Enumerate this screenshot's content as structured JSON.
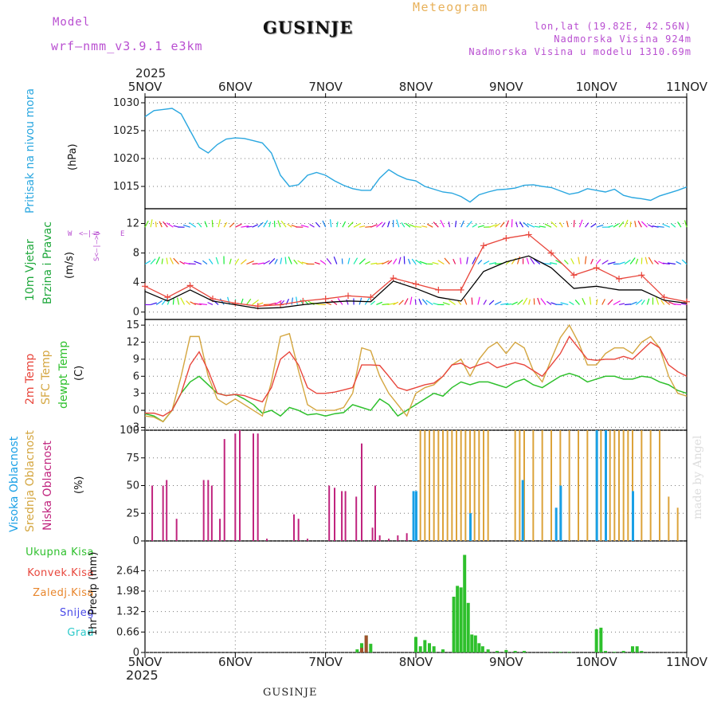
{
  "header": {
    "model_label": "Model",
    "model_version": "wrf—nmm_v3.9.1  e3km",
    "station": "GUSINJE",
    "meteogram": "Meteogram",
    "lonlat": "lon,lat (19.82E, 42.56N)",
    "elevation": "Nadmorska Visina 924m",
    "model_elevation": "Nadmorska Visina u modelu 1310.69m"
  },
  "footer": {
    "station": "GUSINJE",
    "made_by": "made by Angel"
  },
  "axis_days": [
    "5NOV",
    "6NOV",
    "7NOV",
    "8NOV",
    "9NOV",
    "10NOV",
    "11NOV"
  ],
  "year": "2025",
  "colors": {
    "pressure": "#2aa7e0",
    "temp2m": "#e8463c",
    "sfctemp": "#d4a640",
    "dewpt": "#2ec02c",
    "high": "#1aa0e6",
    "mid": "#dca33a",
    "low": "#c0247e",
    "precip": "#2ec02c",
    "conv": "#e8463c",
    "wind_label": "#1fa83c",
    "panel_label_purple": "#b94fd1"
  },
  "chart_data": [
    {
      "type": "line",
      "name": "pressure-panel",
      "ylabel_left": "Pritisak na nivou mora",
      "ylabel_unit": "(hPa)",
      "ylim": [
        1011,
        1031
      ],
      "yticks": [
        "1015",
        "1020",
        "1025",
        "1030"
      ],
      "yticks_val": [
        1015,
        1020,
        1025,
        1030
      ],
      "x": [
        0,
        0.1,
        0.2,
        0.3,
        0.4,
        0.5,
        0.6,
        0.7,
        0.8,
        0.9,
        1.0,
        1.1,
        1.2,
        1.3,
        1.4,
        1.5,
        1.6,
        1.7,
        1.8,
        1.9,
        2.0,
        2.1,
        2.2,
        2.3,
        2.4,
        2.5,
        2.6,
        2.7,
        2.8,
        2.9,
        3.0,
        3.1,
        3.2,
        3.3,
        3.4,
        3.5,
        3.6,
        3.7,
        3.8,
        3.9,
        4.0,
        4.1,
        4.2,
        4.3,
        4.4,
        4.5,
        4.6,
        4.7,
        4.8,
        4.9,
        5.0,
        5.1,
        5.2,
        5.3,
        5.4,
        5.5,
        5.6,
        5.7,
        5.8,
        5.9,
        6.0
      ],
      "series": [
        {
          "name": "Pritisak",
          "values": [
            1027.5,
            1028.6,
            1028.8,
            1029,
            1028,
            1025,
            1022,
            1021,
            1022.5,
            1023.5,
            1023.7,
            1023.6,
            1023.2,
            1022.8,
            1021,
            1017,
            1015,
            1015.3,
            1017,
            1017.5,
            1017,
            1016,
            1015.2,
            1014.6,
            1014.3,
            1014.3,
            1016.5,
            1018,
            1017,
            1016.3,
            1016,
            1015,
            1014.5,
            1014,
            1013.8,
            1013.2,
            1012.2,
            1013.5,
            1014,
            1014.4,
            1014.5,
            1014.7,
            1015.2,
            1015.3,
            1015,
            1014.8,
            1014.2,
            1013.6,
            1013.9,
            1014.6,
            1014.3,
            1014,
            1014.5,
            1013.4,
            1013,
            1012.8,
            1012.5,
            1013.3,
            1013.8,
            1014.3,
            1014.9
          ]
        }
      ]
    },
    {
      "type": "line",
      "name": "wind-panel",
      "ylabel_left_1": "10m Vjetar",
      "ylabel_left_2": "Brzina i Pravac",
      "ylabel_unit": "(m/s)",
      "compass_labels": {
        "w": "W",
        "e": "E",
        "n": "N",
        "s": "S",
        "arrow": "<—|—>"
      },
      "ylim": [
        -1,
        14
      ],
      "yticks": [
        "0",
        "4",
        "8",
        "12"
      ],
      "yticks_val": [
        0,
        4,
        8,
        12
      ],
      "arrow_rows": [
        1,
        6.5,
        11.5
      ],
      "x": [
        0,
        0.25,
        0.5,
        0.75,
        1.0,
        1.25,
        1.5,
        1.75,
        2.0,
        2.25,
        2.5,
        2.75,
        3.0,
        3.25,
        3.5,
        3.75,
        4.0,
        4.25,
        4.5,
        4.75,
        5.0,
        5.25,
        5.5,
        5.75,
        6.0
      ],
      "series": [
        {
          "name": "Brzina 10m",
          "values": [
            2.8,
            1.5,
            3.0,
            1.5,
            1.0,
            0.5,
            0.6,
            1.0,
            1.3,
            1.5,
            1.4,
            4.2,
            3.2,
            2.0,
            1.5,
            5.5,
            6.8,
            7.6,
            6.0,
            3.2,
            3.5,
            3.0,
            3.0,
            1.6,
            1.2
          ]
        },
        {
          "name": "Udari",
          "values": [
            3.5,
            2.0,
            3.6,
            1.8,
            1.2,
            0.8,
            1.0,
            1.5,
            1.8,
            2.2,
            2.0,
            4.6,
            3.8,
            3.0,
            3.0,
            9.0,
            10.0,
            10.5,
            8.0,
            5.0,
            6.0,
            4.5,
            5.0,
            2.0,
            1.4
          ]
        }
      ]
    },
    {
      "type": "line",
      "name": "temperature-panel",
      "ylabel_left_1": "2m Temp",
      "ylabel_left_2": "SFC Temp",
      "ylabel_left_3": "dewpt Temp",
      "ylabel_unit": "(C)",
      "ylim": [
        -3.5,
        16
      ],
      "yticks": [
        "-3",
        "0",
        "3",
        "6",
        "9",
        "12",
        "15"
      ],
      "yticks_val": [
        -3,
        0,
        3,
        6,
        9,
        12,
        15
      ],
      "x": [
        0,
        0.1,
        0.2,
        0.3,
        0.4,
        0.5,
        0.6,
        0.7,
        0.8,
        0.9,
        1.0,
        1.1,
        1.2,
        1.3,
        1.4,
        1.5,
        1.6,
        1.7,
        1.8,
        1.9,
        2.0,
        2.1,
        2.2,
        2.3,
        2.4,
        2.5,
        2.6,
        2.7,
        2.8,
        2.9,
        3.0,
        3.1,
        3.2,
        3.3,
        3.4,
        3.5,
        3.6,
        3.7,
        3.8,
        3.9,
        4.0,
        4.1,
        4.2,
        4.3,
        4.4,
        4.5,
        4.6,
        4.7,
        4.8,
        4.9,
        5.0,
        5.1,
        5.2,
        5.3,
        5.4,
        5.5,
        5.6,
        5.7,
        5.8,
        5.9,
        6.0
      ],
      "series": [
        {
          "name": "2m Temp",
          "values": [
            -0.5,
            -0.5,
            -1,
            0,
            3,
            8,
            10.3,
            7,
            3,
            2.6,
            2.8,
            2.6,
            2,
            1.5,
            4,
            9,
            10.3,
            8,
            4,
            3,
            3,
            3.2,
            3.6,
            4,
            8,
            8,
            7.9,
            6,
            4,
            3.5,
            4,
            4.5,
            4.8,
            6,
            8,
            8.3,
            7.4,
            8,
            8.5,
            7.5,
            8,
            8.4,
            8,
            7,
            6,
            8,
            10,
            13,
            11,
            9,
            8.8,
            9,
            9,
            9.5,
            9,
            10.5,
            12,
            11,
            8,
            6.8,
            6
          ]
        },
        {
          "name": "SFC Temp",
          "values": [
            -1,
            -1.2,
            -2,
            0,
            6,
            13,
            13,
            6,
            2,
            1,
            2,
            1,
            0,
            -1,
            5,
            13,
            13.5,
            7,
            1,
            0,
            0,
            0,
            0.5,
            3,
            11,
            10.5,
            6,
            3,
            1,
            -1,
            3,
            4,
            4.5,
            6,
            8,
            9,
            6,
            9,
            11,
            12,
            10,
            12,
            11,
            7,
            5,
            9,
            12.8,
            15,
            12,
            8,
            8,
            10,
            11,
            11,
            10,
            12,
            13,
            11,
            6,
            3,
            2.5
          ]
        },
        {
          "name": "dewpt Temp",
          "values": [
            -0.6,
            -1,
            -2,
            0,
            3,
            5,
            6,
            4.5,
            3,
            2.6,
            2.8,
            2,
            1,
            -0.5,
            0,
            -1,
            0.5,
            0,
            -0.8,
            -0.6,
            -1,
            -0.6,
            -0.4,
            1,
            0.5,
            0,
            2,
            1,
            -1,
            0,
            1,
            2,
            3,
            2.5,
            4,
            5,
            4.5,
            5,
            5,
            4.5,
            4,
            5,
            5.5,
            4.5,
            4,
            5,
            6,
            6.5,
            6,
            5,
            5.5,
            6,
            6,
            5.5,
            5.5,
            6,
            5.8,
            5,
            4.5,
            3.5,
            3
          ]
        }
      ]
    },
    {
      "type": "bar",
      "name": "cloud-panel",
      "ylabel_left_1": "Visoka Oblacnost",
      "ylabel_left_2": "Srednja Oblacnost",
      "ylabel_left_3": "Niska Oblacnost",
      "ylabel_unit": "(%)",
      "ylim": [
        0,
        100
      ],
      "yticks": [
        "0",
        "25",
        "50",
        "75",
        "100"
      ],
      "yticks_val": [
        0,
        25,
        50,
        75,
        100
      ],
      "series": [
        {
          "name": "Niska",
          "x": [
            0.08,
            0.2,
            0.24,
            0.35,
            0.65,
            0.7,
            0.74,
            0.83,
            0.88,
            1.0,
            1.05,
            1.2,
            1.25,
            1.35,
            1.65,
            1.7,
            1.8,
            2.04,
            2.1,
            2.18,
            2.22,
            2.34,
            2.4,
            2.52,
            2.55,
            2.6,
            2.7,
            2.8,
            2.9
          ],
          "values": [
            50,
            50,
            55,
            20,
            55,
            55,
            50,
            20,
            92,
            97,
            100,
            97,
            97,
            2,
            24,
            20,
            2,
            50,
            48,
            45,
            45,
            40,
            88,
            12,
            50,
            5,
            2,
            5,
            7
          ]
        },
        {
          "name": "Srednja",
          "x": [
            3.05,
            3.1,
            3.15,
            3.2,
            3.25,
            3.3,
            3.35,
            3.4,
            3.45,
            3.5,
            3.55,
            3.6,
            3.65,
            3.7,
            3.75,
            3.8,
            4.1,
            4.15,
            4.2,
            4.3,
            4.4,
            4.5,
            4.6,
            4.7,
            4.8,
            4.9,
            5.0,
            5.05,
            5.1,
            5.15,
            5.2,
            5.25,
            5.3,
            5.35,
            5.4,
            5.5,
            5.6,
            5.7,
            5.8,
            5.9
          ],
          "values": [
            100,
            100,
            100,
            100,
            100,
            100,
            100,
            100,
            100,
            100,
            100,
            100,
            100,
            100,
            100,
            100,
            100,
            100,
            100,
            100,
            100,
            100,
            100,
            100,
            100,
            100,
            100,
            100,
            100,
            100,
            100,
            100,
            100,
            100,
            100,
            100,
            100,
            100,
            40,
            30
          ]
        },
        {
          "name": "Visoka",
          "x": [
            2.97,
            3.0,
            3.6,
            4.18,
            4.55,
            4.6,
            5.0,
            5.1,
            5.4
          ],
          "values": [
            45,
            45,
            25,
            55,
            30,
            50,
            100,
            100,
            45
          ]
        }
      ]
    },
    {
      "type": "bar",
      "name": "precip-panel",
      "ylabel_left_1": "Ukupna Kisa",
      "ylabel_left_2": "Konvek.Kisa",
      "ylabel_left_3": "Zaledj.Kisa",
      "ylabel_left_4": "Snijeg",
      "ylabel_left_5": "Grad",
      "ylabel_unit": "1hr Precip (mm)",
      "ylim": [
        0,
        3.6
      ],
      "yticks": [
        "0",
        "0.66",
        "1.32",
        "1.98",
        "2.64"
      ],
      "yticks_val": [
        0,
        0.66,
        1.32,
        1.98,
        2.64
      ],
      "series": [
        {
          "name": "Ukupna",
          "x": [
            2.35,
            2.4,
            2.45,
            2.5,
            3.0,
            3.05,
            3.1,
            3.15,
            3.2,
            3.3,
            3.42,
            3.46,
            3.5,
            3.54,
            3.58,
            3.62,
            3.66,
            3.7,
            3.74,
            3.8,
            3.9,
            4.0,
            4.1,
            4.2,
            4.5,
            4.6,
            4.7,
            5.0,
            5.05,
            5.1,
            5.2,
            5.3,
            5.4,
            5.45,
            5.5
          ],
          "values": [
            0.1,
            0.3,
            0.55,
            0.28,
            0.5,
            0.2,
            0.4,
            0.3,
            0.2,
            0.1,
            1.8,
            2.15,
            2.1,
            3.15,
            1.6,
            0.58,
            0.55,
            0.3,
            0.2,
            0.1,
            0.05,
            0.08,
            0.05,
            0.05,
            0.02,
            0.02,
            0.02,
            0.75,
            0.8,
            0.05,
            0.02,
            0.05,
            0.2,
            0.2,
            0.05
          ]
        },
        {
          "name": "Konvek",
          "x": [
            2.4,
            2.45
          ],
          "values": [
            0.15,
            0.55
          ]
        }
      ]
    }
  ]
}
